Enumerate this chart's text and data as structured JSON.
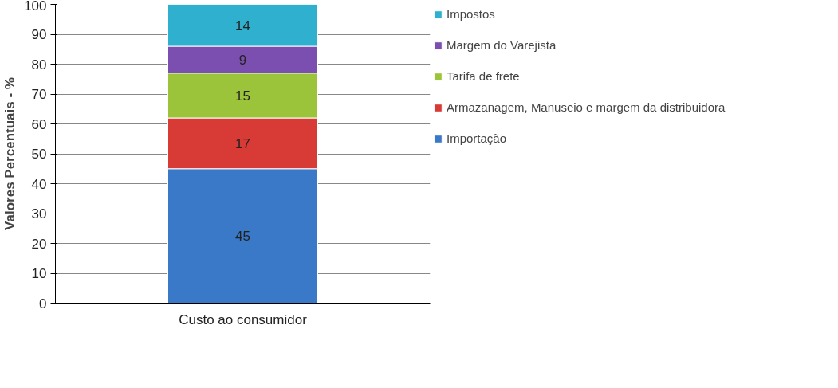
{
  "chart_data": {
    "type": "bar",
    "stacked": true,
    "ylabel": "Valores Percentuais - %",
    "categories": [
      "Custo ao consumidor"
    ],
    "series": [
      {
        "name": "Importação",
        "color": "#3a78c8",
        "values": [
          45
        ]
      },
      {
        "name": "Armazanagem, Manuseio e margem da distribuidora",
        "color": "#d83a36",
        "values": [
          17
        ]
      },
      {
        "name": "Tarifa de frete",
        "color": "#9cc43a",
        "values": [
          15
        ]
      },
      {
        "name": "Margem do Varejista",
        "color": "#7a4fb0",
        "values": [
          9
        ]
      },
      {
        "name": "Impostos",
        "color": "#2fb0cf",
        "values": [
          14
        ]
      }
    ],
    "ylim": [
      0,
      100
    ],
    "yticks": [
      0,
      10,
      20,
      30,
      40,
      50,
      60,
      70,
      80,
      90,
      100
    ],
    "grid": "y",
    "legend": "right",
    "data_labels": true
  }
}
